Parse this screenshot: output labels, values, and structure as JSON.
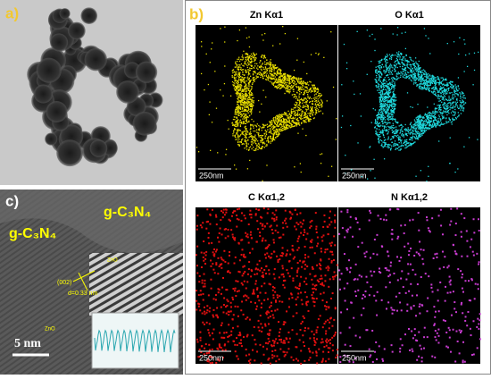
{
  "panel_a": {
    "label": "a)"
  },
  "panel_b": {
    "label": "b)",
    "maps": [
      {
        "title": "Zn Kα1",
        "scale": "250nm"
      },
      {
        "title": "O Kα1",
        "scale": "250nm"
      },
      {
        "title": "C Kα1,2",
        "scale": "250nm"
      },
      {
        "title": "N Kα1,2",
        "scale": "250nm"
      }
    ]
  },
  "panel_c": {
    "label": "c)",
    "phases": [
      "g-C₃N₄",
      "g-C₃N₄"
    ],
    "annotations": [
      "(002)",
      "d=0.33 nm",
      "ZnO",
      "ZnO"
    ],
    "scale": "5 nm"
  }
}
